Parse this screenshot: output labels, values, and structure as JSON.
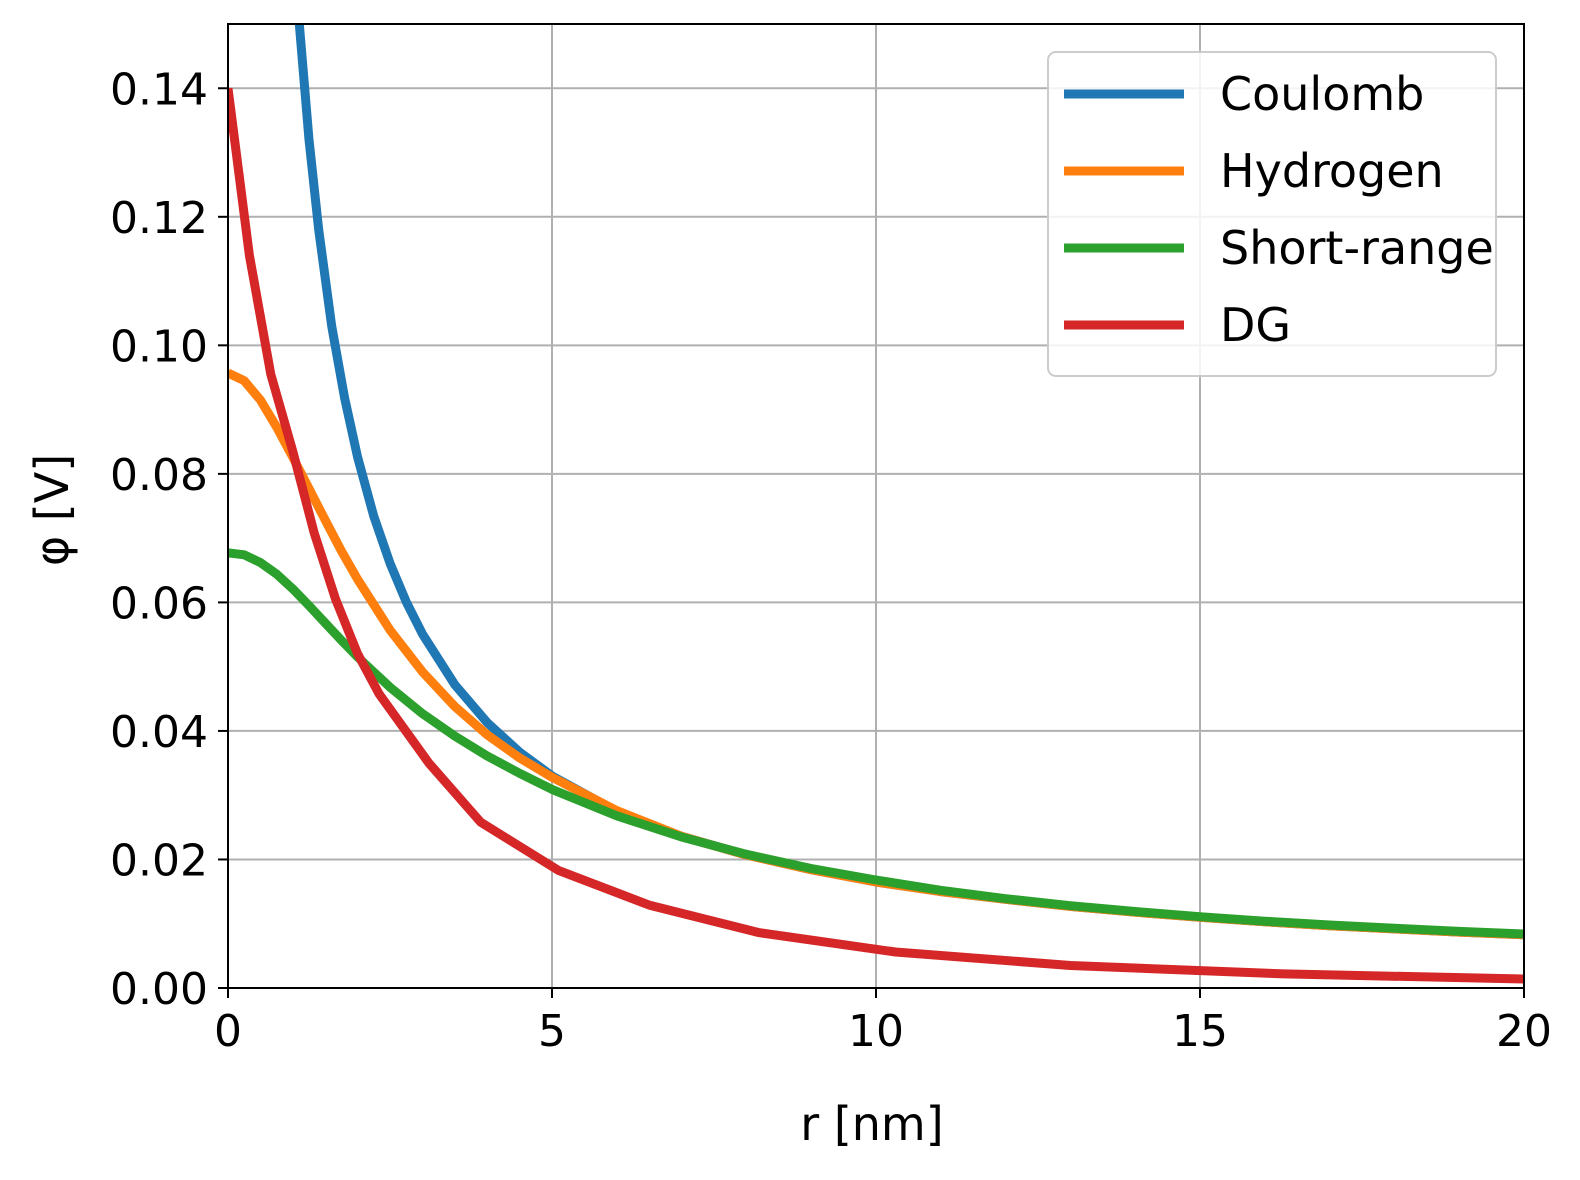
{
  "chart_data": {
    "type": "line",
    "title": "",
    "xlabel": "r [nm]",
    "ylabel": "φ [V]",
    "xlim": [
      0,
      20
    ],
    "ylim": [
      0,
      0.15
    ],
    "x_ticks": [
      0,
      5,
      10,
      15,
      20
    ],
    "x_tick_labels": [
      "0",
      "5",
      "10",
      "15",
      "20"
    ],
    "y_ticks": [
      0.0,
      0.02,
      0.04,
      0.06,
      0.08,
      0.1,
      0.12,
      0.14
    ],
    "y_tick_labels": [
      "0.00",
      "0.02",
      "0.04",
      "0.06",
      "0.08",
      "0.10",
      "0.12",
      "0.14"
    ],
    "grid": true,
    "legend_position": "top-right",
    "series": [
      {
        "name": "Coulomb",
        "color": "#1f77b4",
        "x": [
          1.1,
          1.25,
          1.4,
          1.6,
          1.8,
          2.0,
          2.25,
          2.5,
          2.75,
          3.0,
          3.5,
          4.0,
          4.5,
          5.0,
          6.0,
          7.0,
          8.0,
          9.0,
          10.0,
          11.0,
          12.0,
          13.0,
          14.0,
          15.0,
          16.0,
          17.0,
          18.0,
          19.0,
          20.0
        ],
        "y": [
          0.15,
          0.132,
          0.118,
          0.103,
          0.0918,
          0.0826,
          0.0734,
          0.0661,
          0.0601,
          0.0551,
          0.0472,
          0.0413,
          0.0367,
          0.033,
          0.0275,
          0.0236,
          0.0207,
          0.0184,
          0.0165,
          0.015,
          0.0138,
          0.0127,
          0.0118,
          0.011,
          0.0103,
          0.0097,
          0.0092,
          0.0087,
          0.0083
        ]
      },
      {
        "name": "Hydrogen",
        "color": "#ff7f0e",
        "x": [
          0,
          0.25,
          0.5,
          0.75,
          1.0,
          1.25,
          1.5,
          1.75,
          2.0,
          2.5,
          3.0,
          3.5,
          4.0,
          4.5,
          5.0,
          6.0,
          7.0,
          8.0,
          9.0,
          10.0,
          11.0,
          12.0,
          13.0,
          14.0,
          15.0,
          16.0,
          17.0,
          18.0,
          19.0,
          20.0
        ],
        "y": [
          0.0957,
          0.0945,
          0.0915,
          0.0873,
          0.0826,
          0.0777,
          0.0728,
          0.068,
          0.0636,
          0.0557,
          0.0492,
          0.0438,
          0.0394,
          0.0358,
          0.0328,
          0.0276,
          0.0236,
          0.0207,
          0.0184,
          0.0165,
          0.015,
          0.0138,
          0.0127,
          0.0118,
          0.011,
          0.0103,
          0.0097,
          0.0092,
          0.0087,
          0.0083
        ]
      },
      {
        "name": "Short-range",
        "color": "#2ca02c",
        "x": [
          0,
          0.25,
          0.5,
          0.75,
          1.0,
          1.25,
          1.5,
          1.75,
          2.0,
          2.5,
          3.0,
          3.5,
          4.0,
          4.5,
          5.0,
          6.0,
          7.0,
          8.0,
          9.0,
          10.0,
          11.0,
          12.0,
          13.0,
          14.0,
          15.0,
          16.0,
          17.0,
          18.0,
          19.0,
          20.0
        ],
        "y": [
          0.0677,
          0.0674,
          0.0662,
          0.0644,
          0.0621,
          0.0595,
          0.0568,
          0.0541,
          0.0515,
          0.0468,
          0.0427,
          0.0392,
          0.0361,
          0.0334,
          0.0309,
          0.0268,
          0.0235,
          0.0208,
          0.0186,
          0.0168,
          0.0152,
          0.0139,
          0.0128,
          0.0119,
          0.0111,
          0.0104,
          0.0098,
          0.0093,
          0.0088,
          0.0084
        ]
      },
      {
        "name": "DG",
        "color": "#d62728",
        "x": [
          0,
          0.33,
          0.66,
          1.0,
          1.33,
          1.66,
          2.0,
          2.33,
          3.1,
          3.9,
          5.1,
          6.5,
          8.2,
          10.3,
          13.0,
          16.3,
          20.0
        ],
        "y": [
          0.14,
          0.114,
          0.0955,
          0.0835,
          0.0708,
          0.0605,
          0.052,
          0.0458,
          0.035,
          0.0258,
          0.0183,
          0.0129,
          0.0086,
          0.0056,
          0.0035,
          0.0022,
          0.0014
        ]
      }
    ]
  }
}
